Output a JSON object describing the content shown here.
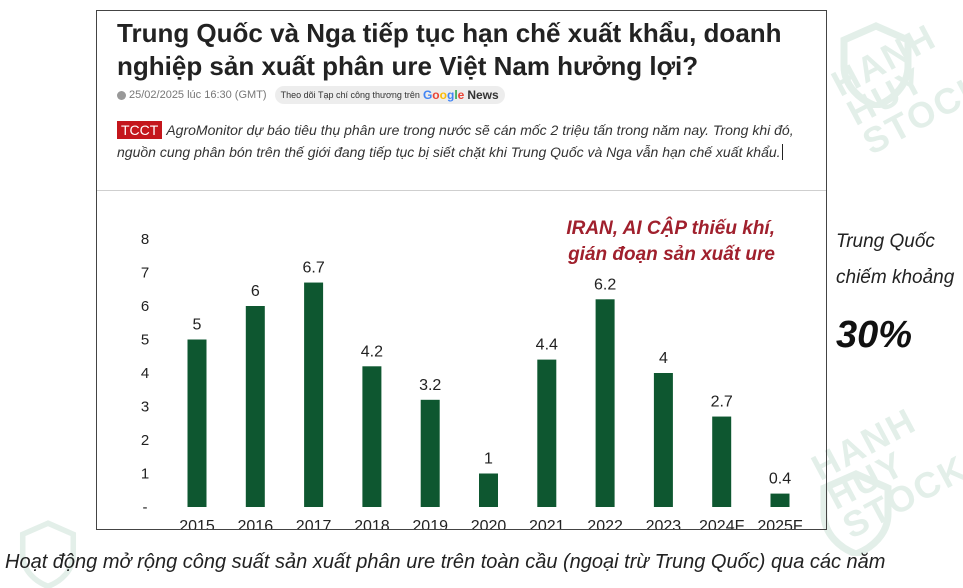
{
  "article": {
    "title": "Trung Quốc và Nga tiếp tục hạn chế xuất khẩu, doanh nghiệp sản xuất phân ure Việt Nam hưởng lợi?",
    "date": "25/02/2025 lúc 16:30 (GMT)",
    "follow_text": "Theo dõi Tạp chí công thương trên",
    "news_suffix": "News",
    "tag": "TCCT",
    "lead": "AgroMonitor dự báo tiêu thụ phân ure trong nước sẽ cán mốc 2 triệu tấn trong năm nay. Trong khi đó, nguồn cung phân bón trên thế giới đang tiếp tục bị siết chặt khi Trung Quốc và Nga vẫn hạn chế xuất khẩu."
  },
  "side_note": {
    "line1": "Trung Quốc",
    "line2": "chiếm khoảng",
    "value": "30%"
  },
  "caption": "Hoạt động mở rộng công suất sản xuất phân ure trên toàn cầu (ngoại trừ Trung Quốc) qua các năm",
  "watermark": {
    "line1": "HANH",
    "line2": "HUY",
    "line3": "STOCK"
  },
  "colors": {
    "bar": "#0e5730",
    "annotation": "#a0202d",
    "tag": "#c4161c"
  },
  "chart_data": {
    "type": "bar",
    "categories": [
      "2015",
      "2016",
      "2017",
      "2018",
      "2019",
      "2020",
      "2021",
      "2022",
      "2023",
      "2024F",
      "2025F"
    ],
    "values": [
      5,
      6,
      6.7,
      4.2,
      3.2,
      1,
      4.4,
      6.2,
      4,
      2.7,
      0.4
    ],
    "data_labels": [
      "5",
      "6",
      "6.7",
      "4.2",
      "3.2",
      "1",
      "4.4",
      "6.2",
      "4",
      "2.7",
      "0.4"
    ],
    "y_ticks": [
      "-",
      "1",
      "2",
      "3",
      "4",
      "5",
      "6",
      "7",
      "8"
    ],
    "ylim": [
      0,
      8
    ],
    "grid": false,
    "annotation": {
      "line1": "IRAN, AI CẬP thiếu khí,",
      "line2": "gián đoạn sản xuất ure"
    }
  }
}
